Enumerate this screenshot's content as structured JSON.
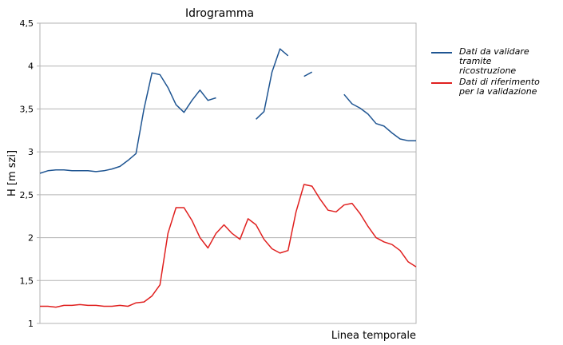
{
  "chart_data": {
    "type": "line",
    "title": "Idrogramma",
    "x_label": "Linea temporale",
    "y_label": "H [m szi]",
    "categories": [
      null,
      null,
      null,
      null,
      null,
      null,
      null,
      null,
      null,
      null,
      null,
      null,
      null,
      null,
      null,
      null,
      null,
      null,
      null,
      null,
      null,
      null,
      null,
      null,
      null,
      null,
      null,
      null,
      null,
      null,
      null,
      null,
      null,
      null,
      null,
      null,
      null,
      null,
      null,
      null,
      null,
      null,
      null,
      null,
      null,
      null,
      null,
      null
    ],
    "series": [
      {
        "name": "Dati da validare tramite ricostruzione",
        "color": "#1f5592",
        "values": [
          2.75,
          2.78,
          2.79,
          2.79,
          2.78,
          2.78,
          2.78,
          2.77,
          2.78,
          2.8,
          2.83,
          2.9,
          2.98,
          3.5,
          3.92,
          3.9,
          3.75,
          3.55,
          3.46,
          3.6,
          3.72,
          3.6,
          3.63,
          null,
          null,
          null,
          null,
          3.38,
          3.47,
          3.93,
          4.2,
          4.12,
          null,
          3.88,
          3.93,
          null,
          null,
          null,
          3.67,
          3.56,
          3.51,
          3.44,
          3.33,
          3.3,
          3.22,
          3.15,
          3.13,
          3.13
        ]
      },
      {
        "name": "Dati di riferimento per la validazione",
        "color": "#e0201f",
        "values": [
          1.2,
          1.2,
          1.19,
          1.21,
          1.21,
          1.22,
          1.21,
          1.21,
          1.2,
          1.2,
          1.21,
          1.2,
          1.24,
          1.25,
          1.32,
          1.45,
          2.05,
          2.35,
          2.35,
          2.2,
          2.0,
          1.88,
          2.05,
          2.15,
          2.05,
          1.98,
          2.22,
          2.15,
          1.98,
          1.87,
          1.82,
          1.85,
          2.3,
          2.62,
          2.6,
          2.45,
          2.32,
          2.3,
          2.38,
          2.4,
          2.28,
          2.13,
          2.0,
          1.95,
          1.92,
          1.85,
          1.72,
          1.66
        ]
      }
    ],
    "ylim": [
      1,
      4.5
    ],
    "yticks": [
      1,
      {
        "value": 1.5,
        "label": "1,5"
      },
      2,
      {
        "value": 2.5,
        "label": "2,5"
      },
      3,
      {
        "value": 3.5,
        "label": "3,5"
      },
      4,
      {
        "value": 4.5,
        "label": "4,5"
      }
    ],
    "grid": true,
    "legend": "right"
  }
}
